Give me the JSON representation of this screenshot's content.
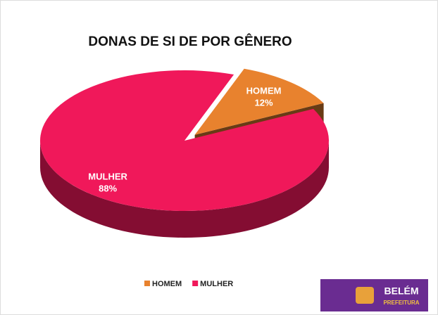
{
  "chart_data": {
    "type": "pie",
    "title": "DONAS DE SI DE POR GÊNERO",
    "categories": [
      "HOMEM",
      "MULHER"
    ],
    "values": [
      12,
      88
    ],
    "value_labels": [
      "12%",
      "88%"
    ],
    "colors": [
      "#e8822e",
      "#f0185a"
    ],
    "legend": "bottom"
  },
  "logo": {
    "name": "BELÉM",
    "sub": "PREFEITURA"
  }
}
